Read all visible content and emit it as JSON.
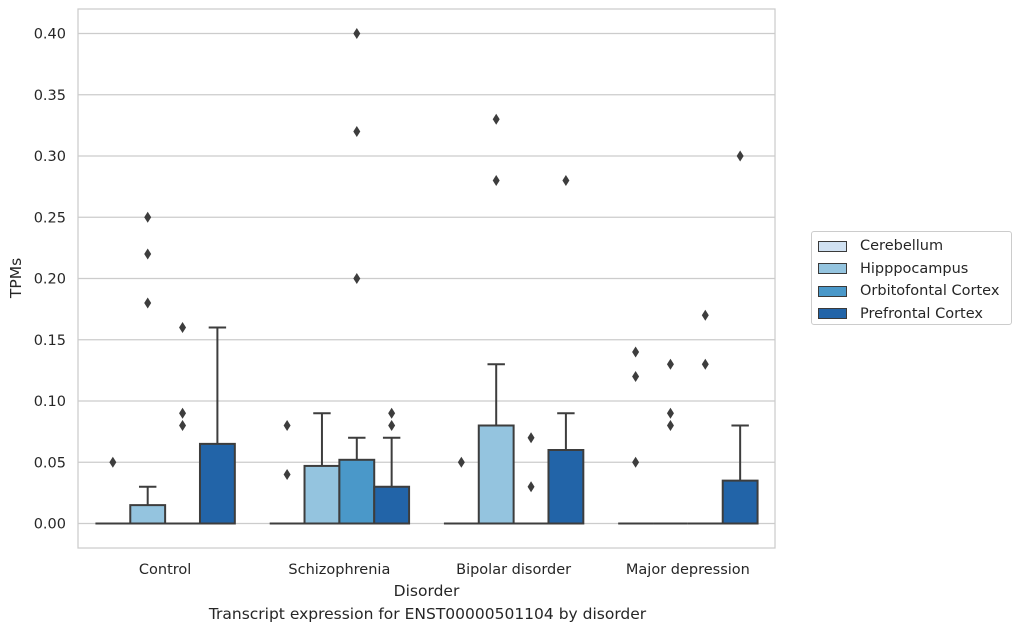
{
  "caption": "Transcript expression for ENST00000501104 by disorder",
  "chart_data": {
    "type": "box",
    "xlabel": "Disorder",
    "ylabel": "TPMs",
    "ylim": [
      -0.02,
      0.42
    ],
    "yticks": [
      "0.00",
      "0.05",
      "0.10",
      "0.15",
      "0.20",
      "0.25",
      "0.30",
      "0.35",
      "0.40"
    ],
    "categories": [
      "Control",
      "Schizophrenia",
      "Bipolar disorder",
      "Major depression"
    ],
    "grid": "horizontal",
    "legend_position": "right",
    "series": [
      {
        "name": "Cerebellum",
        "color": "#d0e1f2",
        "boxes": [
          {
            "q1": 0,
            "median": 0,
            "q3": 0,
            "whisker_low": 0,
            "whisker_high": 0,
            "outliers": [
              0.05
            ]
          },
          {
            "q1": 0,
            "median": 0,
            "q3": 0,
            "whisker_low": 0,
            "whisker_high": 0,
            "outliers": [
              0.04,
              0.08
            ]
          },
          {
            "q1": 0,
            "median": 0,
            "q3": 0,
            "whisker_low": 0,
            "whisker_high": 0,
            "outliers": [
              0.05
            ]
          },
          {
            "q1": 0,
            "median": 0,
            "q3": 0,
            "whisker_low": 0,
            "whisker_high": 0,
            "outliers": [
              0.05,
              0.12,
              0.14
            ]
          }
        ]
      },
      {
        "name": "Hipppocampus",
        "color": "#94c4df",
        "boxes": [
          {
            "q1": 0,
            "median": 0,
            "q3": 0.015,
            "whisker_low": 0,
            "whisker_high": 0.03,
            "outliers": [
              0.18,
              0.22,
              0.25
            ]
          },
          {
            "q1": 0,
            "median": 0,
            "q3": 0.047,
            "whisker_low": 0,
            "whisker_high": 0.09,
            "outliers": []
          },
          {
            "q1": 0,
            "median": 0,
            "q3": 0.08,
            "whisker_low": 0,
            "whisker_high": 0.13,
            "outliers": [
              0.28,
              0.33
            ]
          },
          {
            "q1": 0,
            "median": 0,
            "q3": 0,
            "whisker_low": 0,
            "whisker_high": 0,
            "outliers": [
              0.08,
              0.09,
              0.13
            ]
          }
        ]
      },
      {
        "name": "Orbitofontal Cortex",
        "color": "#4a98c9",
        "boxes": [
          {
            "q1": 0,
            "median": 0,
            "q3": 0,
            "whisker_low": 0,
            "whisker_high": 0,
            "outliers": [
              0.08,
              0.09,
              0.16
            ]
          },
          {
            "q1": 0,
            "median": 0,
            "q3": 0.052,
            "whisker_low": 0,
            "whisker_high": 0.07,
            "outliers": [
              0.2,
              0.32,
              0.4
            ]
          },
          {
            "q1": 0,
            "median": 0,
            "q3": 0,
            "whisker_low": 0,
            "whisker_high": 0,
            "outliers": [
              0.03,
              0.07
            ]
          },
          {
            "q1": 0,
            "median": 0,
            "q3": 0,
            "whisker_low": 0,
            "whisker_high": 0,
            "outliers": [
              0.13,
              0.17
            ]
          }
        ]
      },
      {
        "name": "Prefrontal Cortex",
        "color": "#2264a8",
        "boxes": [
          {
            "q1": 0,
            "median": 0,
            "q3": 0.065,
            "whisker_low": 0,
            "whisker_high": 0.16,
            "outliers": []
          },
          {
            "q1": 0,
            "median": 0,
            "q3": 0.03,
            "whisker_low": 0,
            "whisker_high": 0.07,
            "outliers": [
              0.08,
              0.09
            ]
          },
          {
            "q1": 0,
            "median": 0,
            "q3": 0.06,
            "whisker_low": 0,
            "whisker_high": 0.09,
            "outliers": [
              0.28
            ]
          },
          {
            "q1": 0,
            "median": 0,
            "q3": 0.035,
            "whisker_low": 0,
            "whisker_high": 0.08,
            "outliers": [
              0.3
            ]
          }
        ]
      }
    ]
  }
}
